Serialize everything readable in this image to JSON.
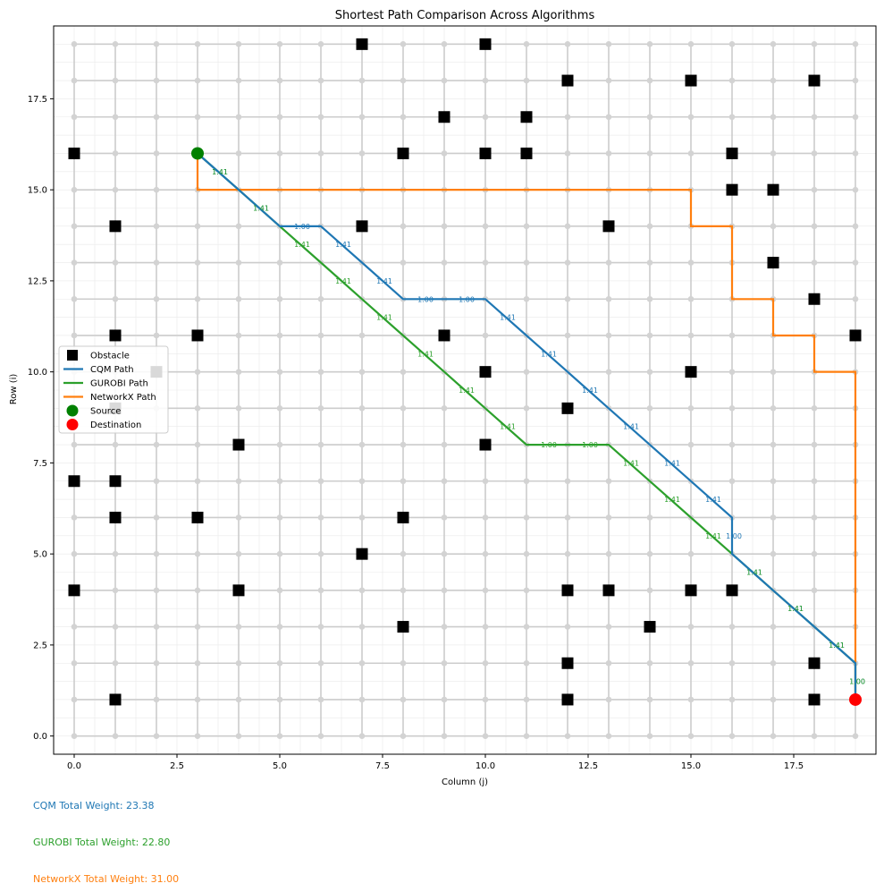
{
  "chart_data": {
    "type": "scatter",
    "title": "Shortest Path Comparison Across Algorithms",
    "xlabel": "Column (j)",
    "ylabel": "Row (i)",
    "xlim": [
      -0.5,
      19.5
    ],
    "ylim": [
      -0.5,
      19.5
    ],
    "x_ticks": [
      "0.0",
      "2.5",
      "5.0",
      "7.5",
      "10.0",
      "12.5",
      "15.0",
      "17.5"
    ],
    "y_ticks": [
      "0.0",
      "2.5",
      "5.0",
      "7.5",
      "10.0",
      "12.5",
      "15.0",
      "17.5"
    ],
    "grid": true,
    "legend_position": "center-left",
    "legend": [
      {
        "label": "Obstacle",
        "marker": "square",
        "color": "#000000"
      },
      {
        "label": "CQM Path",
        "marker": "line",
        "color": "#1f77b4"
      },
      {
        "label": "GUROBI Path",
        "marker": "line",
        "color": "#2ca02c"
      },
      {
        "label": "NetworkX Path",
        "marker": "line",
        "color": "#ff7f0e"
      },
      {
        "label": "Source",
        "marker": "circle",
        "color": "#008000"
      },
      {
        "label": "Destination",
        "marker": "circle",
        "color": "#ff0000"
      }
    ],
    "source": [
      3,
      16
    ],
    "destination": [
      19,
      1
    ],
    "obstacles": [
      [
        7,
        19
      ],
      [
        10,
        19
      ],
      [
        12,
        18
      ],
      [
        15,
        18
      ],
      [
        18,
        18
      ],
      [
        9,
        17
      ],
      [
        11,
        17
      ],
      [
        0,
        16
      ],
      [
        8,
        16
      ],
      [
        10,
        16
      ],
      [
        11,
        16
      ],
      [
        16,
        16
      ],
      [
        16,
        15
      ],
      [
        17,
        15
      ],
      [
        1,
        14
      ],
      [
        7,
        14
      ],
      [
        13,
        14
      ],
      [
        17,
        13
      ],
      [
        18,
        12
      ],
      [
        1,
        11
      ],
      [
        3,
        11
      ],
      [
        9,
        11
      ],
      [
        19,
        11
      ],
      [
        10,
        10
      ],
      [
        15,
        10
      ],
      [
        2,
        10
      ],
      [
        12,
        9
      ],
      [
        1,
        9
      ],
      [
        4,
        8
      ],
      [
        10,
        8
      ],
      [
        0,
        7
      ],
      [
        1,
        7
      ],
      [
        1,
        6
      ],
      [
        3,
        6
      ],
      [
        8,
        6
      ],
      [
        7,
        5
      ],
      [
        0,
        4
      ],
      [
        4,
        4
      ],
      [
        12,
        4
      ],
      [
        13,
        4
      ],
      [
        15,
        4
      ],
      [
        16,
        4
      ],
      [
        8,
        3
      ],
      [
        14,
        3
      ],
      [
        12,
        2
      ],
      [
        18,
        2
      ],
      [
        1,
        1
      ],
      [
        12,
        1
      ],
      [
        18,
        1
      ]
    ],
    "series": [
      {
        "name": "CQM Path",
        "color": "#1f77b4",
        "points": [
          [
            3,
            16
          ],
          [
            4,
            15
          ],
          [
            5,
            14
          ],
          [
            6,
            14
          ],
          [
            7,
            13
          ],
          [
            8,
            12
          ],
          [
            9,
            12
          ],
          [
            10,
            12
          ],
          [
            11,
            11
          ],
          [
            12,
            10
          ],
          [
            13,
            9
          ],
          [
            14,
            8
          ],
          [
            15,
            7
          ],
          [
            16,
            6
          ],
          [
            16,
            5
          ],
          [
            17,
            4
          ],
          [
            18,
            3
          ],
          [
            19,
            2
          ],
          [
            19,
            1
          ]
        ],
        "edge_weights": [
          "1.41",
          "1.41",
          "1.00",
          "1.41",
          "1.41",
          "1.00",
          "1.00",
          "1.41",
          "1.41",
          "1.41",
          "1.41",
          "1.41",
          "1.41",
          "1.00",
          "1.41",
          "1.41",
          "1.41",
          "1.00"
        ]
      },
      {
        "name": "GUROBI Path",
        "color": "#2ca02c",
        "points": [
          [
            3,
            16
          ],
          [
            4,
            15
          ],
          [
            5,
            14
          ],
          [
            6,
            13
          ],
          [
            7,
            12
          ],
          [
            8,
            11
          ],
          [
            9,
            10
          ],
          [
            10,
            9
          ],
          [
            11,
            8
          ],
          [
            12,
            8
          ],
          [
            13,
            8
          ],
          [
            14,
            7
          ],
          [
            15,
            6
          ],
          [
            16,
            5
          ],
          [
            17,
            4
          ],
          [
            18,
            3
          ],
          [
            19,
            2
          ],
          [
            19,
            1
          ]
        ],
        "edge_weights": [
          "1.41",
          "1.41",
          "1.41",
          "1.41",
          "1.41",
          "1.41",
          "1.41",
          "1.41",
          "1.00",
          "1.00",
          "1.41",
          "1.41",
          "1.41",
          "1.41",
          "1.41",
          "1.41",
          "1.00"
        ]
      },
      {
        "name": "NetworkX Path",
        "color": "#ff7f0e",
        "points": [
          [
            3,
            16
          ],
          [
            3,
            15
          ],
          [
            15,
            15
          ],
          [
            15,
            14
          ],
          [
            16,
            14
          ],
          [
            16,
            12
          ],
          [
            17,
            12
          ],
          [
            17,
            11
          ],
          [
            18,
            11
          ],
          [
            18,
            10
          ],
          [
            19,
            10
          ],
          [
            19,
            1
          ]
        ],
        "edge_weights": []
      }
    ]
  },
  "totals": [
    {
      "text": "CQM Total Weight: 23.38",
      "color": "#1f77b4"
    },
    {
      "text": "GUROBI Total Weight: 22.80",
      "color": "#2ca02c"
    },
    {
      "text": "NetworkX Total Weight: 31.00",
      "color": "#ff7f0e"
    }
  ]
}
